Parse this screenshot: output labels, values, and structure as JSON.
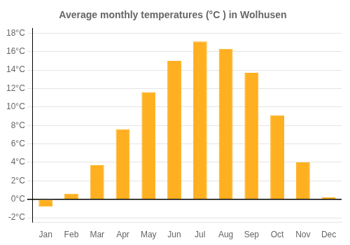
{
  "chart_data": {
    "type": "bar",
    "title": "Average monthly temperatures (°C ) in Wolhusen",
    "categories": [
      "Jan",
      "Feb",
      "Mar",
      "Apr",
      "May",
      "Jun",
      "Jul",
      "Aug",
      "Sep",
      "Oct",
      "Nov",
      "Dec"
    ],
    "values": [
      -0.8,
      0.6,
      3.7,
      7.6,
      11.6,
      15.0,
      17.1,
      16.3,
      13.7,
      9.1,
      4.0,
      0.2
    ],
    "color": "#FFB020",
    "ylim": [
      -2.5,
      18.5
    ],
    "yticks": [
      {
        "value": -2,
        "label": "-2°C"
      },
      {
        "value": 0,
        "label": "0°C"
      },
      {
        "value": 2,
        "label": "2°C"
      },
      {
        "value": 4,
        "label": "4°C"
      },
      {
        "value": 6,
        "label": "6°C"
      },
      {
        "value": 8,
        "label": "8°C"
      },
      {
        "value": 10,
        "label": "10°C"
      },
      {
        "value": 12,
        "label": "12°C"
      },
      {
        "value": 14,
        "label": "14°C"
      },
      {
        "value": 16,
        "label": "16°C"
      },
      {
        "value": 18,
        "label": "18°C"
      }
    ],
    "grid": true
  }
}
